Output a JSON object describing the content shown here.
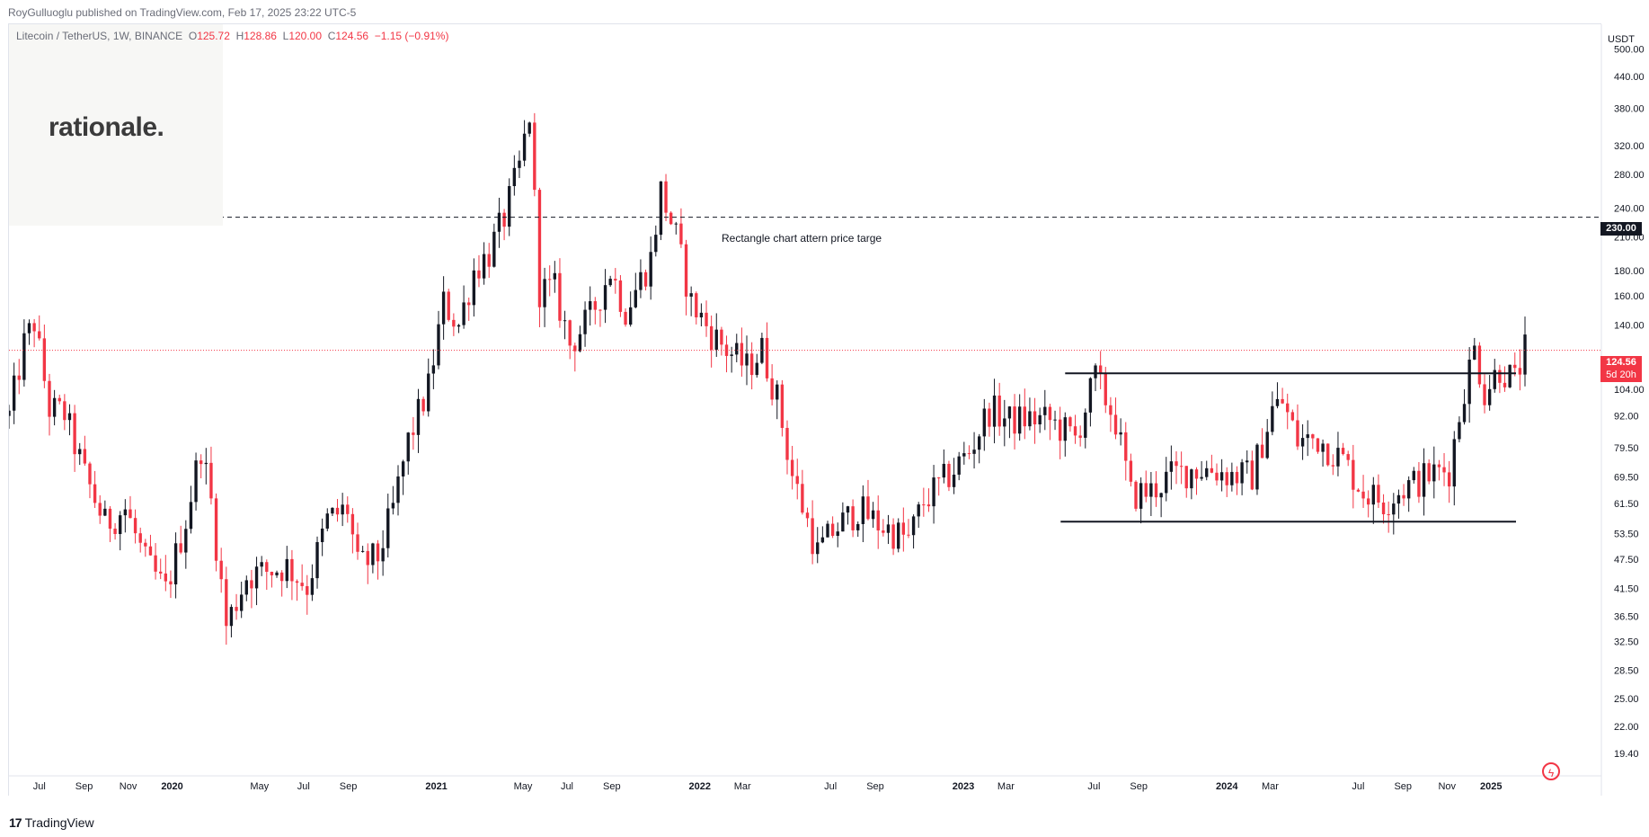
{
  "header": {
    "publish_line": "RoyGulluoglu published on TradingView.com, Feb 17, 2025 23:22 UTC-5"
  },
  "legend": {
    "symbol": "Litecoin / TetherUS, 1W, BINANCE",
    "open_label": "O",
    "open": "125.72",
    "high_label": "H",
    "high": "128.86",
    "low_label": "L",
    "low": "120.00",
    "close_label": "C",
    "close": "124.56",
    "change": "−1.15 (−0.91%)"
  },
  "watermark": {
    "text": "rationale."
  },
  "annotation": {
    "text": "Rectangle chart attern price targe"
  },
  "price_axis": {
    "currency": "USDT",
    "tag_target": "230.00",
    "tag_last": "124.56",
    "tag_countdown": "5d 20h"
  },
  "footer": {
    "brand": "TradingView",
    "brand_mark": "17"
  },
  "colors": {
    "up": "#131722",
    "down": "#f23645",
    "last_price_line": "#f23645",
    "target_line": "#131722",
    "rectangle": "#131722"
  },
  "chart_data": {
    "type": "candlestick",
    "title": "Litecoin / TetherUS, 1W, BINANCE",
    "y_scale": "log",
    "ylim": [
      17.5,
      560
    ],
    "y_ticks": [
      "500.00",
      "440.00",
      "380.00",
      "320.00",
      "280.00",
      "240.00",
      "210.00",
      "180.00",
      "160.00",
      "140.00",
      "104.00",
      "92.00",
      "79.50",
      "69.50",
      "61.50",
      "53.50",
      "47.50",
      "41.50",
      "36.50",
      "32.50",
      "28.50",
      "25.00",
      "22.00",
      "19.40"
    ],
    "x_ticks": [
      {
        "label": "Jul",
        "date": "2019-07-01",
        "year": false
      },
      {
        "label": "Sep",
        "date": "2019-09-01",
        "year": false
      },
      {
        "label": "Nov",
        "date": "2019-11-01",
        "year": false
      },
      {
        "label": "2020",
        "date": "2020-01-01",
        "year": true
      },
      {
        "label": "May",
        "date": "2020-05-01",
        "year": false
      },
      {
        "label": "Jul",
        "date": "2020-07-01",
        "year": false
      },
      {
        "label": "Sep",
        "date": "2020-09-01",
        "year": false
      },
      {
        "label": "2021",
        "date": "2021-01-01",
        "year": true
      },
      {
        "label": "May",
        "date": "2021-05-01",
        "year": false
      },
      {
        "label": "Jul",
        "date": "2021-07-01",
        "year": false
      },
      {
        "label": "Sep",
        "date": "2021-09-01",
        "year": false
      },
      {
        "label": "2022",
        "date": "2022-01-01",
        "year": true
      },
      {
        "label": "Mar",
        "date": "2022-03-01",
        "year": false
      },
      {
        "label": "Jul",
        "date": "2022-07-01",
        "year": false
      },
      {
        "label": "Sep",
        "date": "2022-09-01",
        "year": false
      },
      {
        "label": "2023",
        "date": "2023-01-01",
        "year": true
      },
      {
        "label": "Mar",
        "date": "2023-03-01",
        "year": false
      },
      {
        "label": "Jul",
        "date": "2023-07-01",
        "year": false
      },
      {
        "label": "Sep",
        "date": "2023-09-01",
        "year": false
      },
      {
        "label": "2024",
        "date": "2024-01-01",
        "year": true
      },
      {
        "label": "Mar",
        "date": "2024-03-01",
        "year": false
      },
      {
        "label": "Jul",
        "date": "2024-07-01",
        "year": false
      },
      {
        "label": "Sep",
        "date": "2024-09-01",
        "year": false
      },
      {
        "label": "Nov",
        "date": "2024-11-01",
        "year": false
      },
      {
        "label": "2025",
        "date": "2025-01-01",
        "year": true
      }
    ],
    "x_range": [
      "2019-05-20",
      "2025-04-14"
    ],
    "price_path": [
      [
        "2019-05-20",
        92
      ],
      [
        "2019-06-10",
        128
      ],
      [
        "2019-06-24",
        142
      ],
      [
        "2019-07-15",
        95
      ],
      [
        "2019-08-05",
        93
      ],
      [
        "2019-09-02",
        70
      ],
      [
        "2019-09-30",
        56
      ],
      [
        "2019-10-28",
        60
      ],
      [
        "2019-11-25",
        47
      ],
      [
        "2019-12-23",
        41
      ],
      [
        "2020-01-20",
        57
      ],
      [
        "2020-02-10",
        80
      ],
      [
        "2020-02-24",
        62
      ],
      [
        "2020-03-16",
        35
      ],
      [
        "2020-04-13",
        44
      ],
      [
        "2020-05-11",
        45
      ],
      [
        "2020-06-08",
        46
      ],
      [
        "2020-07-06",
        42
      ],
      [
        "2020-08-03",
        57
      ],
      [
        "2020-08-31",
        60
      ],
      [
        "2020-09-14",
        46
      ],
      [
        "2020-10-12",
        48
      ],
      [
        "2020-11-02",
        60
      ],
      [
        "2020-11-23",
        82
      ],
      [
        "2020-12-21",
        105
      ],
      [
        "2021-01-11",
        155
      ],
      [
        "2021-02-01",
        140
      ],
      [
        "2021-02-22",
        180
      ],
      [
        "2021-03-15",
        195
      ],
      [
        "2021-04-05",
        230
      ],
      [
        "2021-04-26",
        290
      ],
      [
        "2021-05-10",
        370
      ],
      [
        "2021-05-24",
        165
      ],
      [
        "2021-06-14",
        165
      ],
      [
        "2021-07-05",
        128
      ],
      [
        "2021-08-02",
        145
      ],
      [
        "2021-08-30",
        180
      ],
      [
        "2021-09-20",
        150
      ],
      [
        "2021-10-25",
        190
      ],
      [
        "2021-11-08",
        260
      ],
      [
        "2021-11-29",
        210
      ],
      [
        "2021-12-20",
        155
      ],
      [
        "2022-01-17",
        135
      ],
      [
        "2022-02-07",
        125
      ],
      [
        "2022-03-07",
        115
      ],
      [
        "2022-03-28",
        125
      ],
      [
        "2022-04-18",
        100
      ],
      [
        "2022-05-09",
        70
      ],
      [
        "2022-06-13",
        49
      ],
      [
        "2022-07-04",
        54
      ],
      [
        "2022-08-08",
        60
      ],
      [
        "2022-09-05",
        56
      ],
      [
        "2022-10-17",
        52
      ],
      [
        "2022-11-07",
        62
      ],
      [
        "2022-12-12",
        70
      ],
      [
        "2023-01-09",
        78
      ],
      [
        "2023-02-06",
        95
      ],
      [
        "2023-03-06",
        90
      ],
      [
        "2023-04-03",
        91
      ],
      [
        "2023-05-01",
        90
      ],
      [
        "2023-06-05",
        83
      ],
      [
        "2023-07-03",
        110
      ],
      [
        "2023-07-31",
        90
      ],
      [
        "2023-08-21",
        64
      ],
      [
        "2023-09-18",
        65
      ],
      [
        "2023-10-16",
        70
      ],
      [
        "2023-11-13",
        72
      ],
      [
        "2023-12-11",
        72
      ],
      [
        "2024-01-08",
        70
      ],
      [
        "2024-02-05",
        70
      ],
      [
        "2024-03-04",
        95
      ],
      [
        "2024-03-18",
        98
      ],
      [
        "2024-04-08",
        82
      ],
      [
        "2024-05-06",
        83
      ],
      [
        "2024-06-10",
        75
      ],
      [
        "2024-07-08",
        65
      ],
      [
        "2024-08-05",
        62
      ],
      [
        "2024-09-02",
        66
      ],
      [
        "2024-10-07",
        70
      ],
      [
        "2024-11-04",
        72
      ],
      [
        "2024-11-25",
        105
      ],
      [
        "2024-12-09",
        125
      ],
      [
        "2024-12-23",
        103
      ],
      [
        "2025-01-13",
        115
      ],
      [
        "2025-02-03",
        108
      ],
      [
        "2025-02-17",
        124.56
      ]
    ],
    "target_level": 230,
    "rectangle_top": 112,
    "rectangle_bottom": 56.5,
    "rectangle_start": "2023-05-22",
    "annotation_date": "2022-01-03",
    "last_price": 124.56
  }
}
